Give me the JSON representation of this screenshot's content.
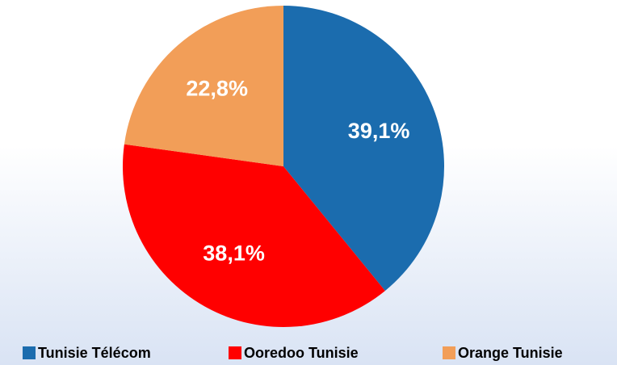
{
  "chart_data": {
    "type": "pie",
    "categories": [
      "Tunisie Télécom",
      "Ooredoo Tunisie",
      "Orange Tunisie"
    ],
    "values": [
      39.1,
      38.1,
      22.8
    ],
    "value_labels": [
      "39,1%",
      "38,1%",
      "22,8%"
    ],
    "colors": [
      "#1b6cae",
      "#ff0000",
      "#f29e58"
    ],
    "legend": "bottom"
  }
}
